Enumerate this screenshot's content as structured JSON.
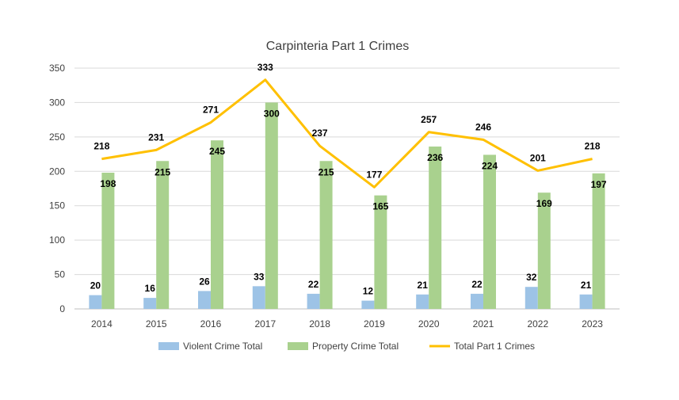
{
  "chart_data": {
    "type": "bar",
    "title": "Carpinteria Part 1 Crimes",
    "xlabel": "",
    "ylabel": "",
    "ylim": [
      0,
      350
    ],
    "yticks": [
      0,
      50,
      100,
      150,
      200,
      250,
      300,
      350
    ],
    "grid": true,
    "legend": "bottom",
    "categories": [
      "2014",
      "2015",
      "2016",
      "2017",
      "2018",
      "2019",
      "2020",
      "2021",
      "2022",
      "2023"
    ],
    "series": [
      {
        "name": "Violent Crime Total",
        "kind": "bar",
        "color": "#9DC3E6",
        "values": [
          20,
          16,
          26,
          33,
          22,
          12,
          21,
          22,
          32,
          21
        ]
      },
      {
        "name": "Property Crime Total",
        "kind": "bar",
        "color": "#A9D18E",
        "values": [
          198,
          215,
          245,
          300,
          215,
          165,
          236,
          224,
          169,
          197
        ]
      },
      {
        "name": "Total Part 1 Crimes",
        "kind": "line",
        "color": "#FFC000",
        "values": [
          218,
          231,
          271,
          333,
          237,
          177,
          257,
          246,
          201,
          218
        ]
      }
    ]
  }
}
